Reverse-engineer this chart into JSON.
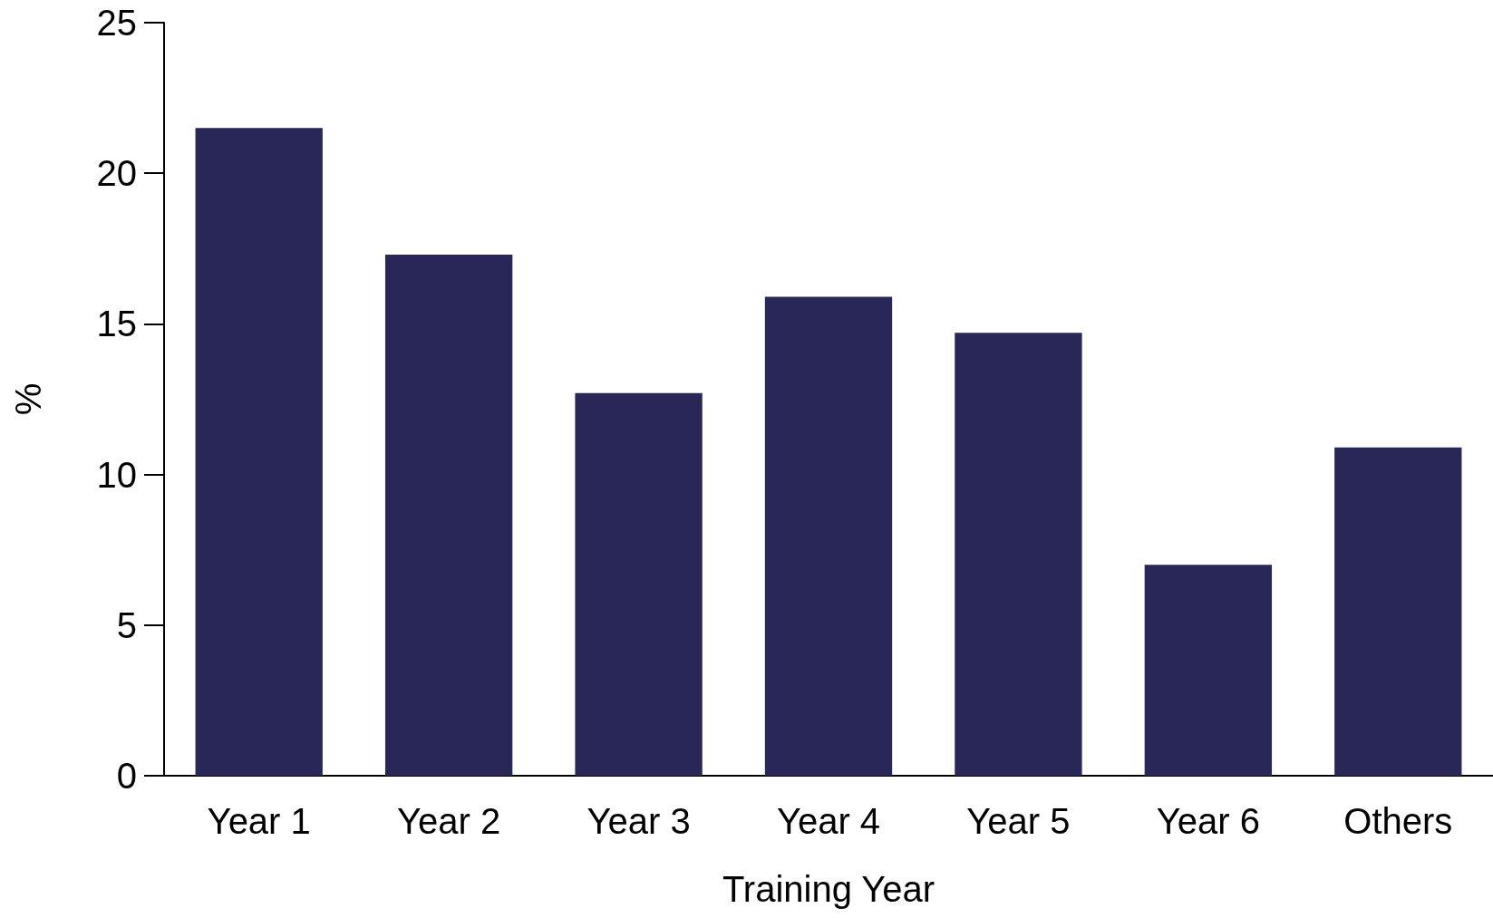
{
  "chart_data": {
    "type": "bar",
    "xlabel": "Training Year",
    "ylabel": "%",
    "categories": [
      "Year 1",
      "Year 2",
      "Year 3",
      "Year 4",
      "Year 5",
      "Year 6",
      "Others"
    ],
    "values": [
      21.5,
      17.3,
      12.7,
      15.9,
      14.7,
      7.0,
      10.9
    ],
    "color": "#282757",
    "ylim": [
      0,
      25
    ],
    "yticks": [
      0,
      5,
      10,
      15,
      20,
      25
    ],
    "grid": false
  }
}
